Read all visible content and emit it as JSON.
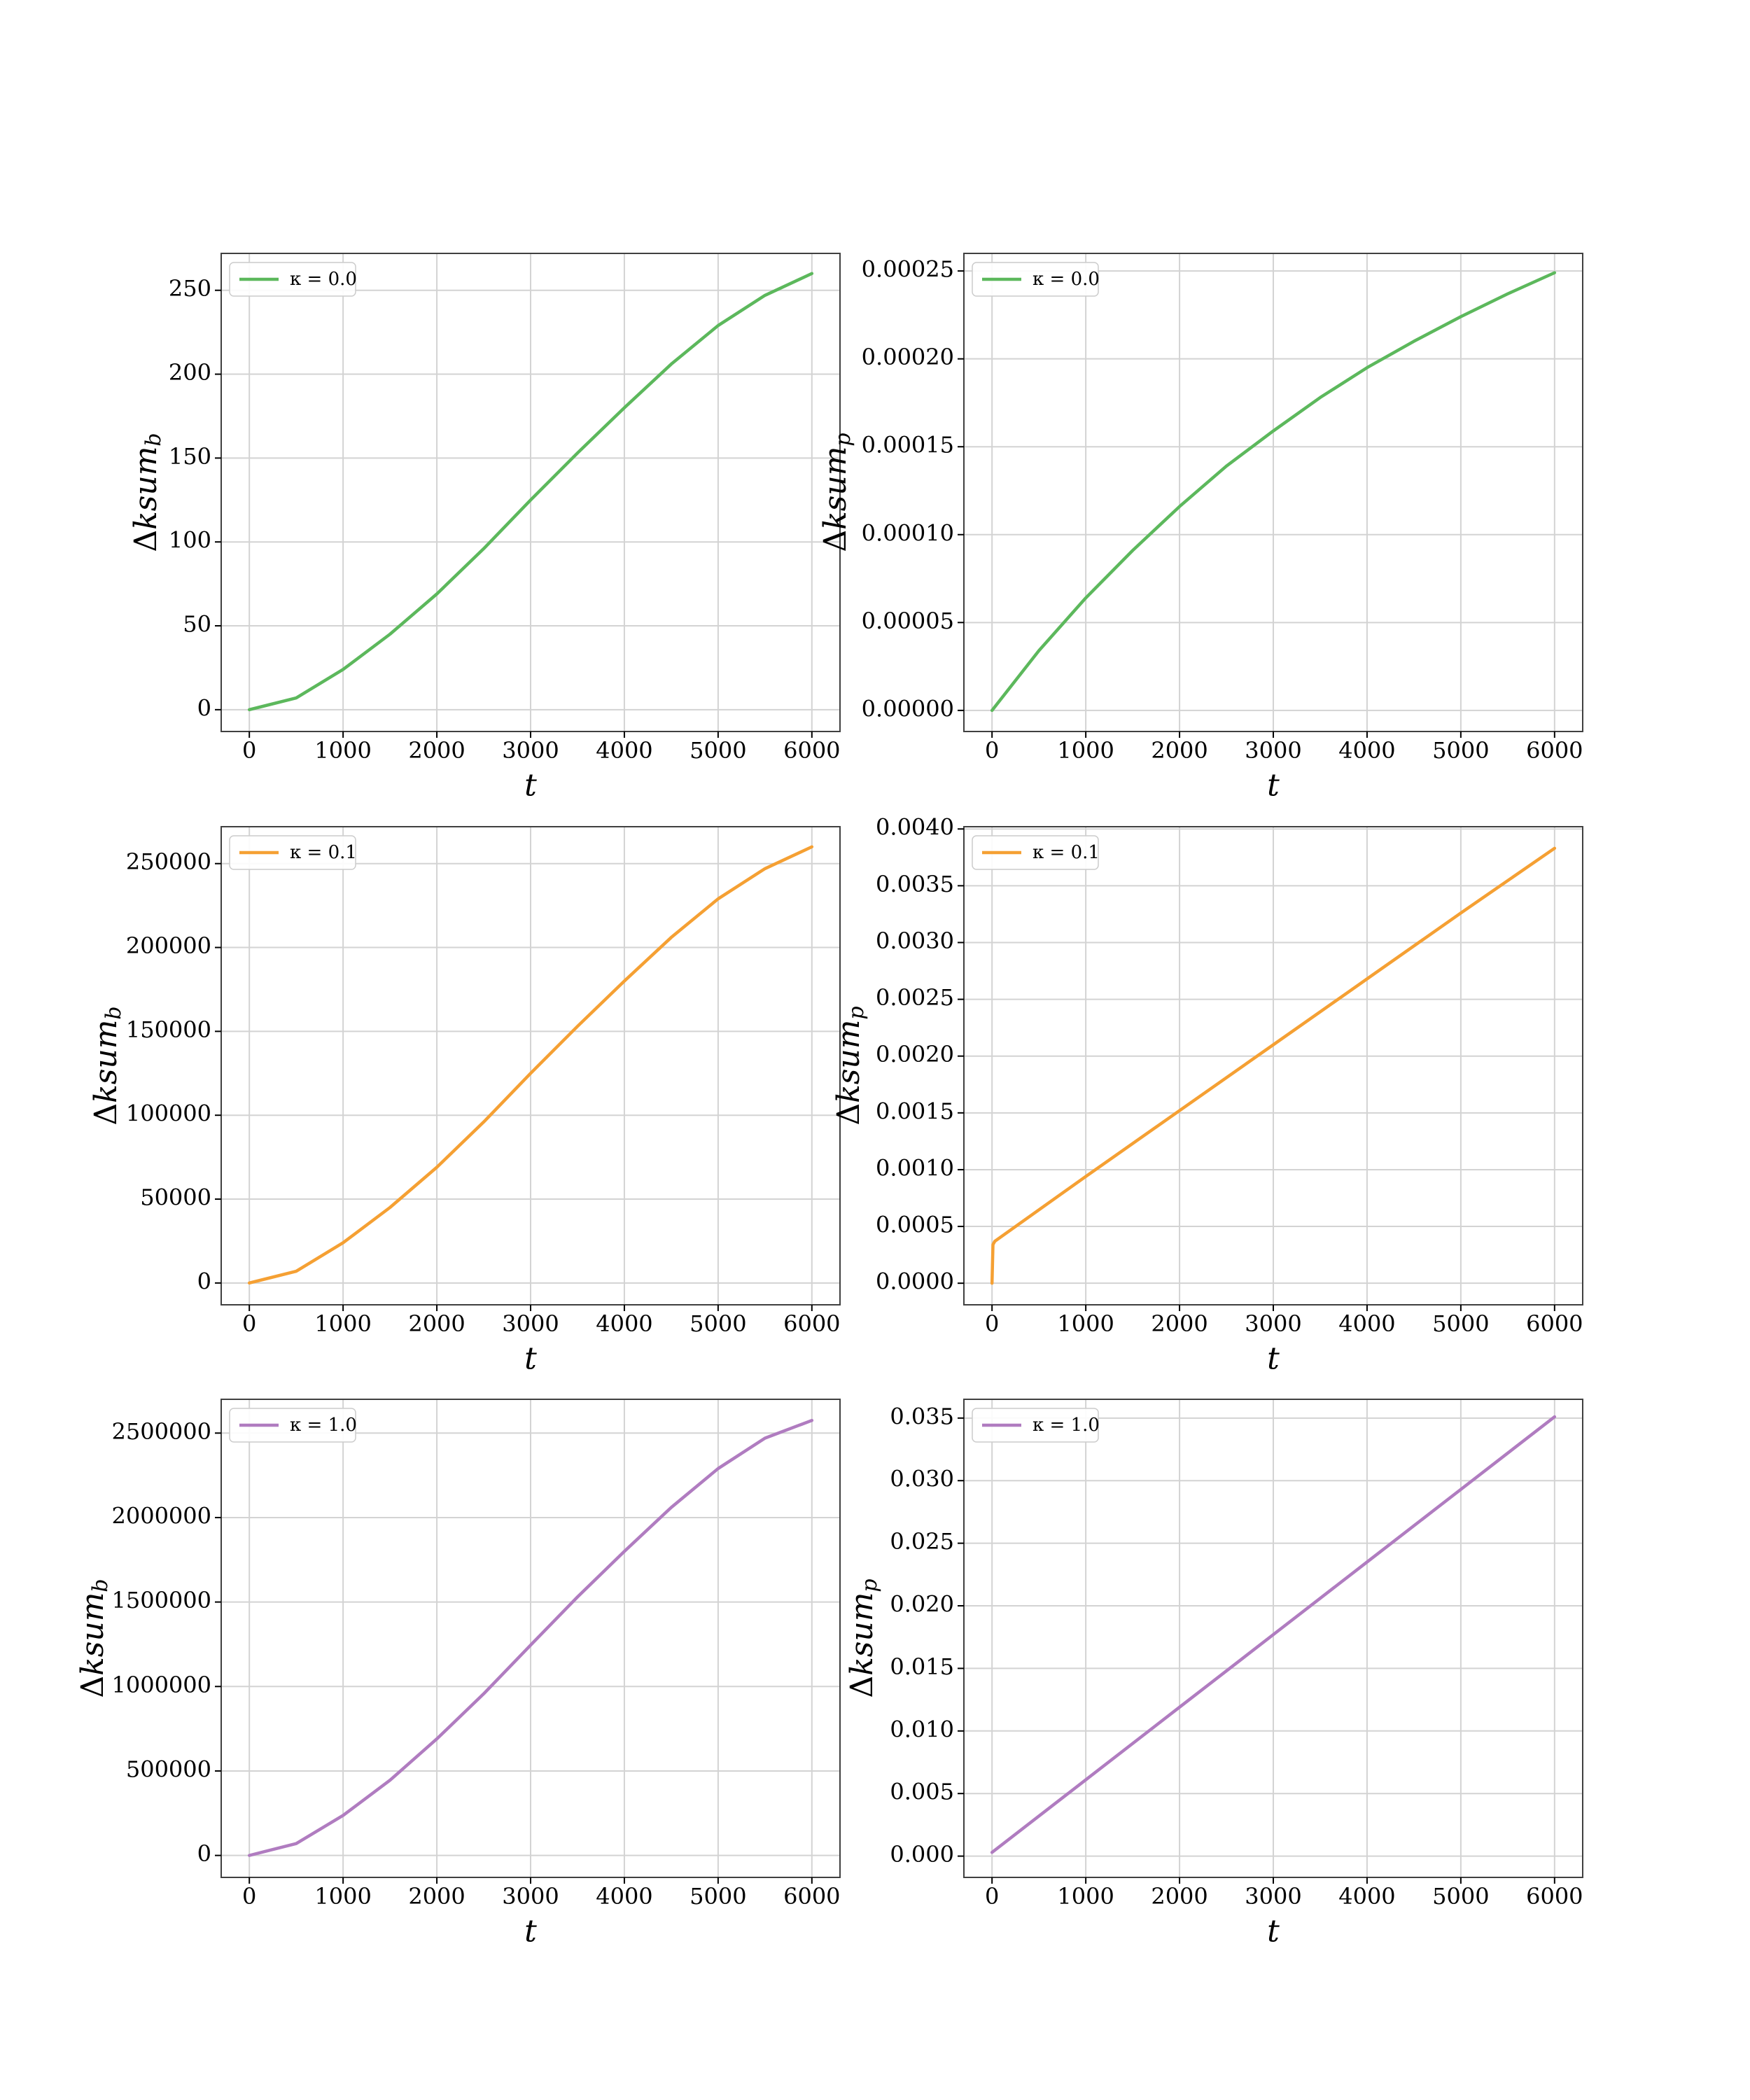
{
  "chart_data": [
    {
      "type": "line",
      "panel": "row1-left",
      "xlabel": "t",
      "ylabel": "Δksum_b",
      "xlim": [
        -300,
        6300
      ],
      "ylim": [
        -13,
        272
      ],
      "xticks": [
        0,
        1000,
        2000,
        3000,
        4000,
        5000,
        6000
      ],
      "xtick_labels": [
        "0",
        "1000",
        "2000",
        "3000",
        "4000",
        "5000",
        "6000"
      ],
      "yticks": [
        0,
        50,
        100,
        150,
        200,
        250
      ],
      "ytick_labels": [
        "0",
        "50",
        "100",
        "150",
        "200",
        "250"
      ],
      "grid": true,
      "legend": "upper left",
      "series": [
        {
          "name": "κ = 0.0",
          "color": "#5cb85c",
          "x": [
            0,
            500,
            1000,
            1500,
            2000,
            2500,
            3000,
            3500,
            4000,
            4500,
            5000,
            5500,
            6000
          ],
          "y": [
            0,
            7,
            24,
            45,
            69,
            96,
            125,
            153,
            180,
            206,
            229,
            247,
            260
          ]
        }
      ]
    },
    {
      "type": "line",
      "panel": "row1-right",
      "xlabel": "t",
      "ylabel": "Δksum_p",
      "xlim": [
        -300,
        6300
      ],
      "ylim": [
        -1.2e-05,
        0.00026
      ],
      "xticks": [
        0,
        1000,
        2000,
        3000,
        4000,
        5000,
        6000
      ],
      "xtick_labels": [
        "0",
        "1000",
        "2000",
        "3000",
        "4000",
        "5000",
        "6000"
      ],
      "yticks": [
        0,
        5e-05,
        0.0001,
        0.00015,
        0.0002,
        0.00025
      ],
      "ytick_labels": [
        "0.00000",
        "0.00005",
        "0.00010",
        "0.00015",
        "0.00020",
        "0.00025"
      ],
      "grid": true,
      "legend": "upper left",
      "series": [
        {
          "name": "κ = 0.0",
          "color": "#5cb85c",
          "x": [
            0,
            500,
            1000,
            1500,
            2000,
            2500,
            3000,
            3500,
            4000,
            4500,
            5000,
            5500,
            6000
          ],
          "y": [
            0,
            3.4e-05,
            6.4e-05,
            9.1e-05,
            0.000116,
            0.000139,
            0.000159,
            0.000178,
            0.000195,
            0.00021,
            0.000224,
            0.000237,
            0.000249
          ]
        }
      ]
    },
    {
      "type": "line",
      "panel": "row2-left",
      "xlabel": "t",
      "ylabel": "Δksum_b",
      "xlim": [
        -300,
        6300
      ],
      "ylim": [
        -13000,
        272000
      ],
      "xticks": [
        0,
        1000,
        2000,
        3000,
        4000,
        5000,
        6000
      ],
      "xtick_labels": [
        "0",
        "1000",
        "2000",
        "3000",
        "4000",
        "5000",
        "6000"
      ],
      "yticks": [
        0,
        50000,
        100000,
        150000,
        200000,
        250000
      ],
      "ytick_labels": [
        "0",
        "50000",
        "100000",
        "150000",
        "200000",
        "250000"
      ],
      "grid": true,
      "legend": "upper left",
      "series": [
        {
          "name": "κ = 0.1",
          "color": "#f5a033",
          "x": [
            0,
            500,
            1000,
            1500,
            2000,
            2500,
            3000,
            3500,
            4000,
            4500,
            5000,
            5500,
            6000
          ],
          "y": [
            0,
            7000,
            24000,
            45000,
            69000,
            96000,
            125000,
            153000,
            180000,
            206000,
            229000,
            247000,
            260000
          ]
        }
      ]
    },
    {
      "type": "line",
      "panel": "row2-right",
      "xlabel": "t",
      "ylabel": "Δksum_p",
      "xlim": [
        -300,
        6300
      ],
      "ylim": [
        -0.00019,
        0.00402
      ],
      "xticks": [
        0,
        1000,
        2000,
        3000,
        4000,
        5000,
        6000
      ],
      "xtick_labels": [
        "0",
        "1000",
        "2000",
        "3000",
        "4000",
        "5000",
        "6000"
      ],
      "yticks": [
        0,
        0.0005,
        0.001,
        0.0015,
        0.002,
        0.0025,
        0.003,
        0.0035,
        0.004
      ],
      "ytick_labels": [
        "0.0000",
        "0.0005",
        "0.0010",
        "0.0015",
        "0.0020",
        "0.0025",
        "0.0030",
        "0.0035",
        "0.0040"
      ],
      "grid": true,
      "legend": "upper left",
      "series": [
        {
          "name": "κ = 0.1",
          "color": "#f5a033",
          "x": [
            0,
            10,
            30,
            1000,
            2000,
            3000,
            4000,
            5000,
            6000
          ],
          "y": [
            0,
            0.00034,
            0.00037,
            0.00094,
            0.00152,
            0.0021,
            0.00268,
            0.00326,
            0.00383
          ]
        }
      ]
    },
    {
      "type": "line",
      "panel": "row3-left",
      "xlabel": "t",
      "ylabel": "Δksum_b",
      "xlim": [
        -300,
        6300
      ],
      "ylim": [
        -130000,
        2700000
      ],
      "xticks": [
        0,
        1000,
        2000,
        3000,
        4000,
        5000,
        6000
      ],
      "xtick_labels": [
        "0",
        "1000",
        "2000",
        "3000",
        "4000",
        "5000",
        "6000"
      ],
      "yticks": [
        0,
        500000,
        1000000,
        1500000,
        2000000,
        2500000
      ],
      "ytick_labels": [
        "0",
        "500000",
        "1000000",
        "1500000",
        "2000000",
        "2500000"
      ],
      "grid": true,
      "legend": "upper left",
      "series": [
        {
          "name": "κ = 1.0",
          "color": "#b07cc0",
          "x": [
            0,
            500,
            1000,
            1500,
            2000,
            2500,
            3000,
            3500,
            4000,
            4500,
            5000,
            5500,
            6000
          ],
          "y": [
            0,
            70000,
            237000,
            445000,
            690000,
            957000,
            1245000,
            1530000,
            1800000,
            2060000,
            2290000,
            2470000,
            2575000
          ]
        }
      ]
    },
    {
      "type": "line",
      "panel": "row3-right",
      "xlabel": "t",
      "ylabel": "Δksum_p",
      "xlim": [
        -300,
        6300
      ],
      "ylim": [
        -0.0017,
        0.0365
      ],
      "xticks": [
        0,
        1000,
        2000,
        3000,
        4000,
        5000,
        6000
      ],
      "xtick_labels": [
        "0",
        "1000",
        "2000",
        "3000",
        "4000",
        "5000",
        "6000"
      ],
      "yticks": [
        0,
        0.005,
        0.01,
        0.015,
        0.02,
        0.025,
        0.03,
        0.035
      ],
      "ytick_labels": [
        "0.000",
        "0.005",
        "0.010",
        "0.015",
        "0.020",
        "0.025",
        "0.030",
        "0.035"
      ],
      "grid": true,
      "legend": "upper left",
      "series": [
        {
          "name": "κ = 1.0",
          "color": "#b07cc0",
          "x": [
            0,
            1000,
            2000,
            3000,
            4000,
            5000,
            6000
          ],
          "y": [
            0.0003,
            0.0061,
            0.0119,
            0.0177,
            0.0235,
            0.0293,
            0.0351
          ]
        }
      ]
    }
  ]
}
